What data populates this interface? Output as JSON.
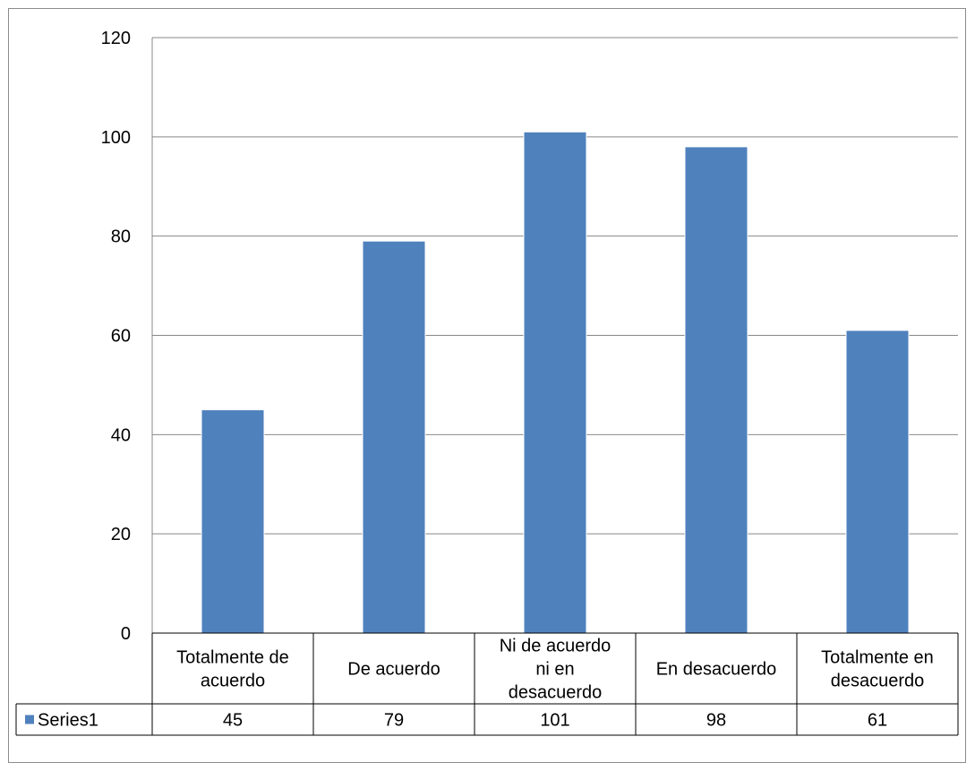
{
  "chart_data": {
    "type": "bar",
    "title": "",
    "xlabel": "",
    "ylabel": "",
    "categories": [
      [
        "Totalmente de",
        "acuerdo"
      ],
      [
        "De acuerdo"
      ],
      [
        "Ni de acuerdo",
        "ni en",
        "desacuerdo"
      ],
      [
        "En desacuerdo"
      ],
      [
        "Totalmente en",
        "desacuerdo"
      ]
    ],
    "series": [
      {
        "name": "Series1",
        "values": [
          45,
          79,
          101,
          98,
          61
        ],
        "color": "#4f81bd"
      }
    ],
    "ylim": [
      0,
      120
    ],
    "yticks": [
      0,
      20,
      40,
      60,
      80,
      100,
      120
    ],
    "grid": true,
    "data_table": true,
    "legend_placement": "data-table-left"
  },
  "colors": {
    "bar": "#4f81bd",
    "grid": "#878787",
    "border": "#8c8c8c"
  }
}
